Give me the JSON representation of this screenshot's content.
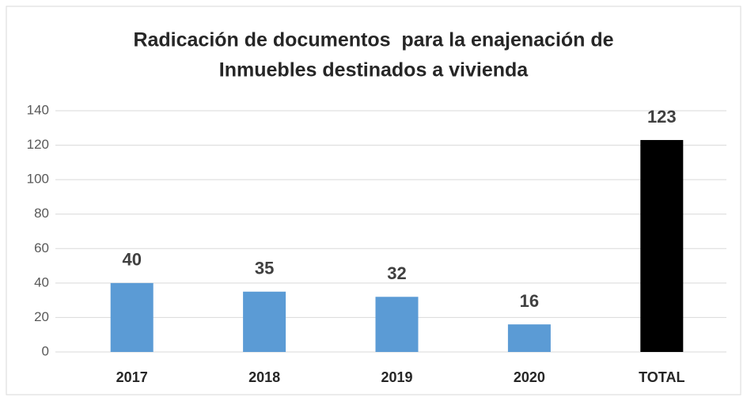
{
  "chart_data": {
    "type": "bar",
    "title": [
      "Radicación de documentos  para la enajenación de",
      "Inmuebles destinados a vivienda"
    ],
    "categories": [
      "2017",
      "2018",
      "2019",
      "2020",
      "TOTAL"
    ],
    "values": [
      40,
      35,
      32,
      16,
      123
    ],
    "colors": [
      "#5b9bd5",
      "#5b9bd5",
      "#5b9bd5",
      "#5b9bd5",
      "#000000"
    ],
    "ylim": [
      0,
      140
    ],
    "yticks": [
      0,
      20,
      40,
      60,
      80,
      100,
      120,
      140
    ],
    "grid": true
  }
}
